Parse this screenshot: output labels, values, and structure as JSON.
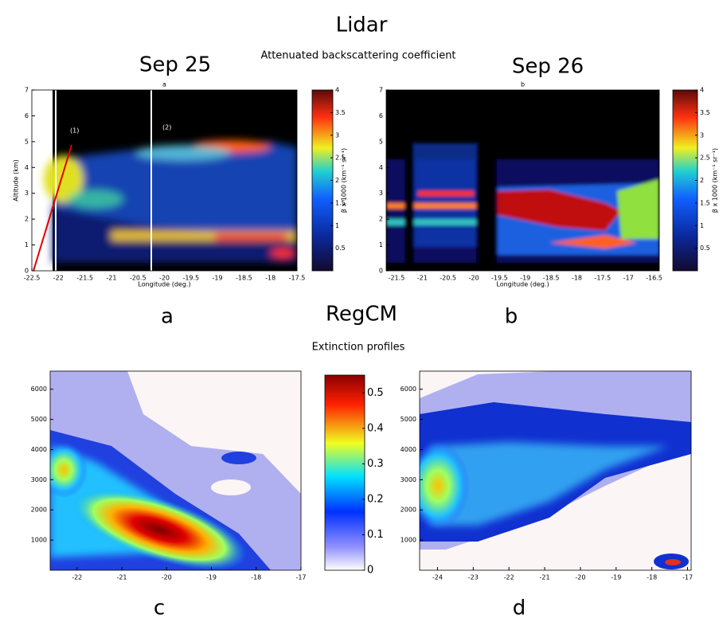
{
  "figure": {
    "title": "Lidar",
    "subtitle": "Attenuated backscattering coefficient",
    "section2_title": "RegCM",
    "section2_subtitle": "Extinction profiles"
  },
  "chart_data": [
    {
      "type": "heatmap",
      "date": "Sep 25",
      "title": "a",
      "panel_label": "a",
      "xlabel": "Longitude (deg.)",
      "ylabel": "Altitude (km)",
      "xlim": [
        -22.5,
        -17.5
      ],
      "xticks": [
        -22.5,
        -22,
        -21.5,
        -21,
        -20.5,
        -20,
        -19.5,
        -19,
        -18.5,
        -18,
        -17.5
      ],
      "ylim": [
        0,
        7
      ],
      "yticks": [
        0,
        1,
        2,
        3,
        4,
        5,
        6,
        7
      ],
      "annotations": [
        "(1)",
        "(2)"
      ],
      "colorbar": {
        "label": "β x 1000 (km⁻¹ sr⁻¹)",
        "lim": [
          0,
          4
        ],
        "ticks": [
          0.5,
          1,
          1.5,
          2,
          2.5,
          3,
          3.5,
          4
        ]
      }
    },
    {
      "type": "heatmap",
      "date": "Sep 26",
      "title": "b",
      "panel_label": "b",
      "xlabel": "Longitude (deg.)",
      "xlim": [
        -21.7,
        -16.4
      ],
      "xticks": [
        -21.5,
        -21,
        -20.5,
        -20,
        -19.5,
        -19,
        -18.5,
        -18,
        -17.5,
        -17,
        -16.5
      ],
      "ylim": [
        0,
        7
      ],
      "yticks": [
        0,
        1,
        2,
        3,
        4,
        5,
        6,
        7
      ],
      "colorbar": {
        "label": "β x 1000 (km⁻¹ sr⁻¹)",
        "lim": [
          0,
          4
        ],
        "ticks": [
          0.5,
          1,
          1.5,
          2,
          2.5,
          3,
          3.5,
          4
        ]
      }
    },
    {
      "type": "contour",
      "panel_label": "c",
      "xlim": [
        -22.6,
        -17
      ],
      "xticks": [
        -22,
        -21,
        -20,
        -19,
        -18,
        -17
      ],
      "ylim": [
        0,
        6600
      ],
      "yticks": [
        1000,
        2000,
        3000,
        4000,
        5000,
        6000
      ],
      "colorbar": {
        "lim": [
          0,
          0.55
        ],
        "ticks": [
          0,
          0.1,
          0.2,
          0.3,
          0.4,
          0.5
        ]
      }
    },
    {
      "type": "contour",
      "panel_label": "d",
      "xlim": [
        -24.5,
        -16.9
      ],
      "xticks": [
        -24,
        -23,
        -22,
        -21,
        -20,
        -19,
        -18,
        -17
      ],
      "ylim": [
        0,
        6600
      ],
      "yticks": [
        1000,
        2000,
        3000,
        4000,
        5000,
        6000
      ]
    }
  ]
}
